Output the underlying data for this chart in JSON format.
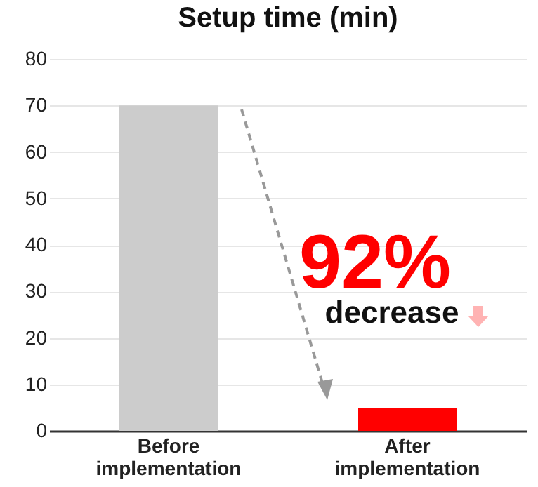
{
  "chart_data": {
    "type": "bar",
    "title": "Setup time (min)",
    "categories": [
      "Before implementation",
      "After implementation"
    ],
    "values": [
      70,
      5
    ],
    "colors": [
      "#cccccc",
      "#ff0000"
    ],
    "ylim": [
      0,
      80
    ],
    "yticks": [
      0,
      10,
      20,
      30,
      40,
      50,
      60,
      70,
      80
    ],
    "grid": "y",
    "annotations": [
      "92%",
      "decrease"
    ]
  }
}
